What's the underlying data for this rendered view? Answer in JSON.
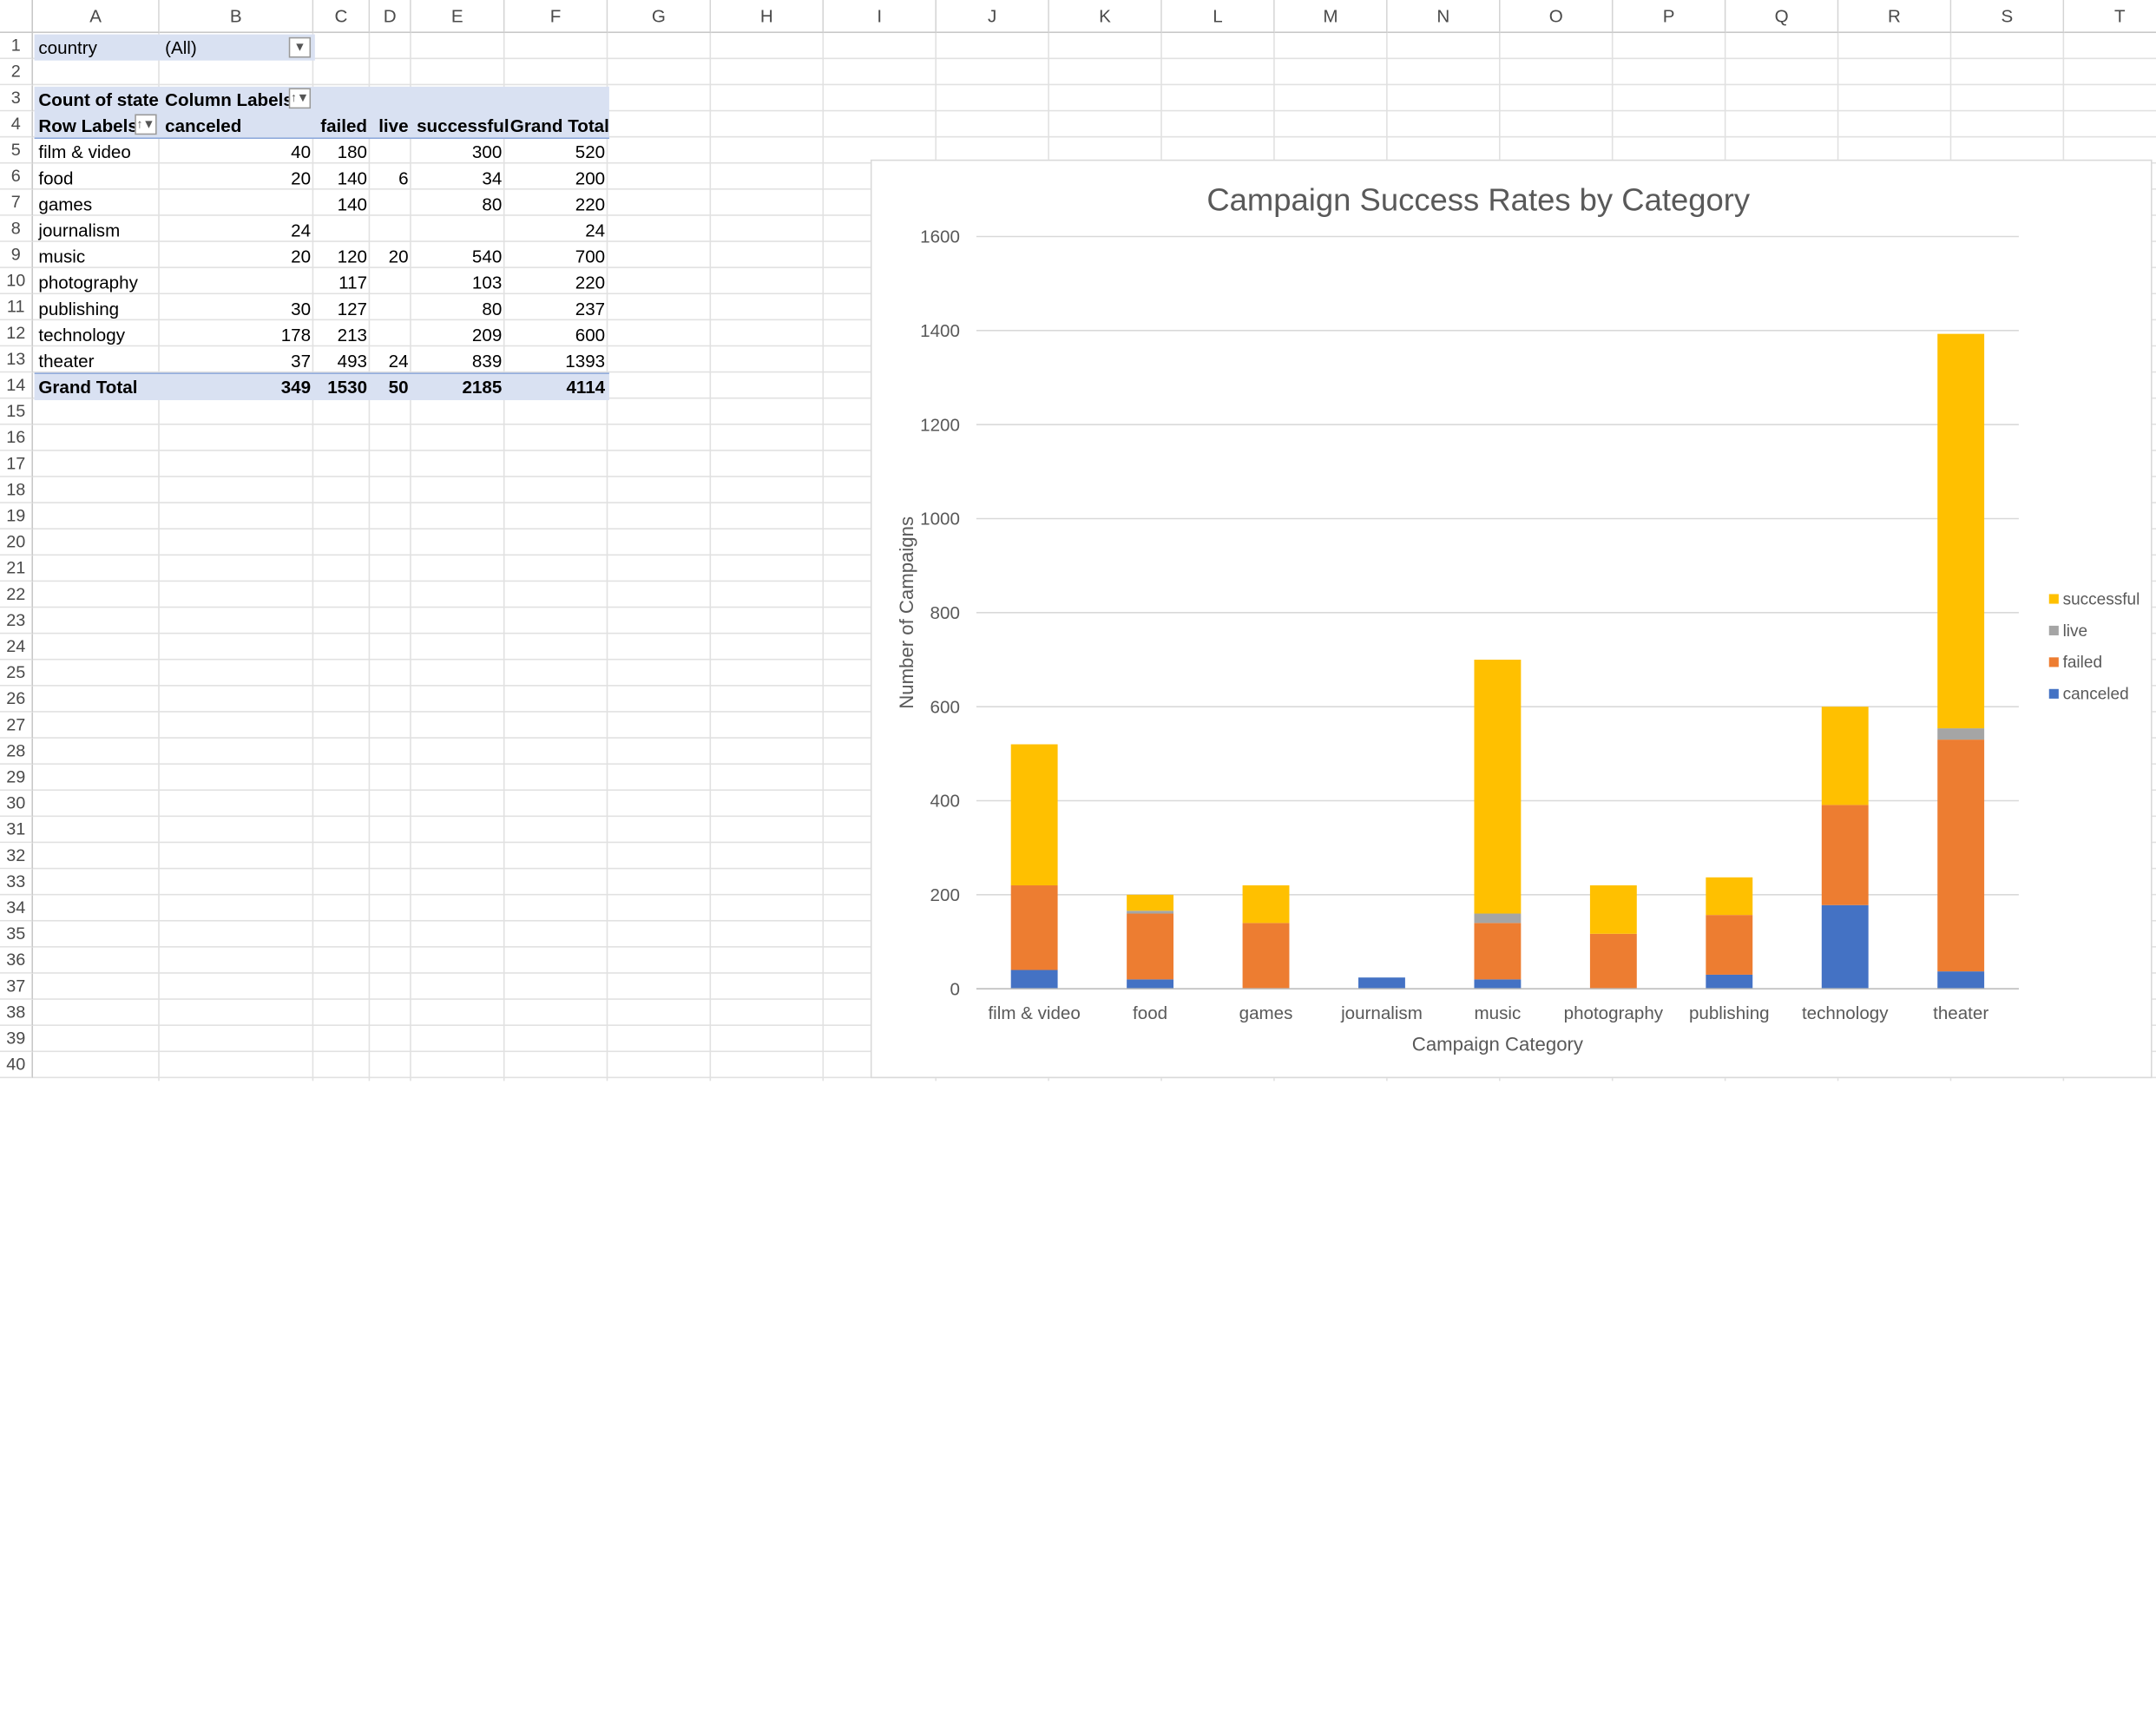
{
  "columns": [
    "A",
    "B",
    "C",
    "D",
    "E",
    "F",
    "G",
    "H",
    "I",
    "J",
    "K",
    "L",
    "M",
    "N",
    "O",
    "P",
    "Q",
    "R",
    "S",
    "T"
  ],
  "rows": [
    "1",
    "2",
    "3",
    "4",
    "5",
    "6",
    "7",
    "8",
    "9",
    "10",
    "11",
    "12",
    "13",
    "14",
    "15",
    "16",
    "17",
    "18",
    "19",
    "20",
    "21",
    "22",
    "23",
    "24",
    "25",
    "26",
    "27",
    "28",
    "29",
    "30",
    "31",
    "32",
    "33",
    "34",
    "35",
    "36",
    "37",
    "38",
    "39",
    "40"
  ],
  "pivot": {
    "filter_label": "country",
    "filter_value": "(All)",
    "value_label": "Count of state",
    "column_labels": "Column Labels",
    "row_labels": "Row Labels",
    "col_headers": [
      "canceled",
      "failed",
      "live",
      "successful",
      "Grand Total"
    ],
    "rows": [
      {
        "label": "film & video",
        "values": [
          "40",
          "180",
          "",
          "300",
          "520"
        ]
      },
      {
        "label": "food",
        "values": [
          "20",
          "140",
          "6",
          "34",
          "200"
        ]
      },
      {
        "label": "games",
        "values": [
          "",
          "140",
          "",
          "80",
          "220"
        ]
      },
      {
        "label": "journalism",
        "values": [
          "24",
          "",
          "",
          "",
          "24"
        ]
      },
      {
        "label": "music",
        "values": [
          "20",
          "120",
          "20",
          "540",
          "700"
        ]
      },
      {
        "label": "photography",
        "values": [
          "",
          "117",
          "",
          "103",
          "220"
        ]
      },
      {
        "label": "publishing",
        "values": [
          "30",
          "127",
          "",
          "80",
          "237"
        ]
      },
      {
        "label": "technology",
        "values": [
          "178",
          "213",
          "",
          "209",
          "600"
        ]
      },
      {
        "label": "theater",
        "values": [
          "37",
          "493",
          "24",
          "839",
          "1393"
        ]
      }
    ],
    "grand_total_label": "Grand Total",
    "grand_totals": [
      "349",
      "1530",
      "50",
      "2185",
      "4114"
    ]
  },
  "icons": {
    "filter_dropdown": "chevron-down-icon",
    "column_filter": "filter-sort-icon",
    "row_filter": "filter-sort-icon"
  },
  "chart_data": {
    "type": "bar",
    "stacked": true,
    "title": "Campaign Success Rates by Category",
    "xlabel": "Campaign Category",
    "ylabel": "Number of Campaigns",
    "ylim": [
      0,
      1600
    ],
    "yticks": [
      0,
      200,
      400,
      600,
      800,
      1000,
      1200,
      1400,
      1600
    ],
    "grid": true,
    "legend_position": "right",
    "categories": [
      "film & video",
      "food",
      "games",
      "journalism",
      "music",
      "photography",
      "publishing",
      "technology",
      "theater"
    ],
    "series": [
      {
        "name": "canceled",
        "color": "#4472c4",
        "values": [
          40,
          20,
          0,
          24,
          20,
          0,
          30,
          178,
          37
        ]
      },
      {
        "name": "failed",
        "color": "#ed7d31",
        "values": [
          180,
          140,
          140,
          0,
          120,
          117,
          127,
          213,
          493
        ]
      },
      {
        "name": "live",
        "color": "#a5a5a5",
        "values": [
          0,
          6,
          0,
          0,
          20,
          0,
          0,
          0,
          24
        ]
      },
      {
        "name": "successful",
        "color": "#ffc000",
        "values": [
          300,
          34,
          80,
          0,
          540,
          103,
          80,
          209,
          839
        ]
      }
    ]
  }
}
